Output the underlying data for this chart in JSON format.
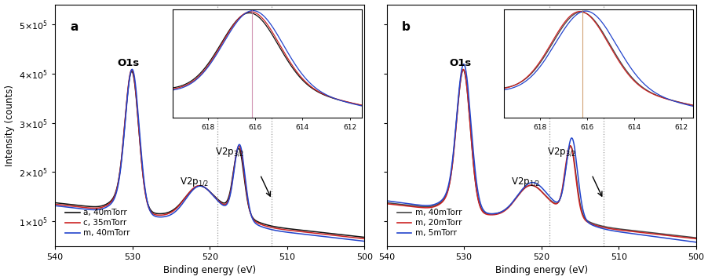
{
  "panel_a_label": "a",
  "panel_b_label": "b",
  "xlabel": "Binding energy (eV)",
  "ylabel": "Intensity (counts)",
  "xlim": [
    500,
    540
  ],
  "ylim": [
    50000.0,
    530000.0
  ],
  "yticks": [
    100000.0,
    200000.0,
    300000.0,
    400000.0,
    500000.0
  ],
  "ytick_labels": [
    "1×10$^5$",
    "2×10$^5$",
    "3×10$^5$",
    "4×10$^5$",
    "5×10$^5$"
  ],
  "panel_a_legend": [
    "a, 40mTorr",
    "c, 35mTorr",
    "m, 40mTorr"
  ],
  "panel_a_colors": [
    "#111111",
    "#cc2222",
    "#2244cc"
  ],
  "panel_b_legend": [
    "m, 40mTorr",
    "m, 20mTorr",
    "m, 5mTorr"
  ],
  "panel_b_colors": [
    "#444444",
    "#cc2222",
    "#2244cc"
  ],
  "dashed_line1": 519.0,
  "dashed_line2": 512.0,
  "inset_vline_a_color": "#cc88aa",
  "inset_vline_b_color": "#cc9966"
}
